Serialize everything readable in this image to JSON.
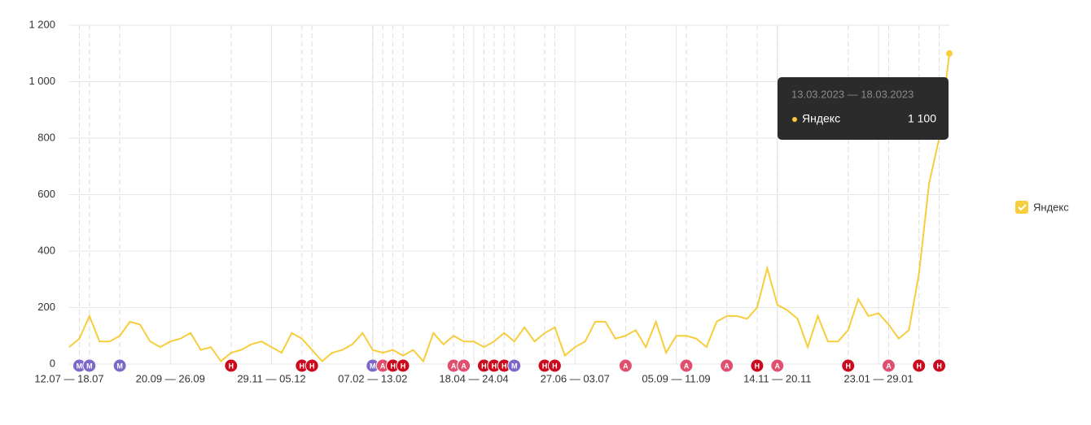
{
  "chart_data": {
    "type": "line",
    "categories": [
      "12.07 — 18.07",
      null,
      null,
      null,
      null,
      null,
      null,
      null,
      null,
      null,
      "20.09 — 26.09",
      null,
      null,
      null,
      null,
      null,
      null,
      null,
      null,
      null,
      "29.11 — 05.12",
      null,
      null,
      null,
      null,
      null,
      null,
      null,
      null,
      null,
      "07.02 — 13.02",
      null,
      null,
      null,
      null,
      null,
      null,
      null,
      null,
      null,
      "18.04 — 24.04",
      null,
      null,
      null,
      null,
      null,
      null,
      null,
      null,
      null,
      "27.06 — 03.07",
      null,
      null,
      null,
      null,
      null,
      null,
      null,
      null,
      null,
      "05.09 — 11.09",
      null,
      null,
      null,
      null,
      null,
      null,
      null,
      null,
      null,
      "14.11 — 20.11",
      null,
      null,
      null,
      null,
      null,
      null,
      null,
      null,
      null,
      "23.01 — 29.01",
      null,
      null,
      null,
      null,
      null,
      null,
      null
    ],
    "series": [
      {
        "name": "Яндекс",
        "color": "#f7cd3c",
        "values": [
          60,
          90,
          170,
          80,
          80,
          100,
          150,
          140,
          80,
          60,
          80,
          90,
          110,
          50,
          60,
          10,
          40,
          50,
          70,
          80,
          60,
          40,
          110,
          90,
          50,
          10,
          40,
          50,
          70,
          110,
          50,
          40,
          50,
          30,
          50,
          10,
          110,
          70,
          100,
          80,
          80,
          60,
          80,
          110,
          80,
          130,
          80,
          110,
          130,
          30,
          60,
          80,
          150,
          150,
          90,
          100,
          120,
          60,
          150,
          40,
          100,
          100,
          90,
          60,
          150,
          170,
          170,
          160,
          200,
          340,
          210,
          190,
          160,
          60,
          170,
          80,
          80,
          120,
          230,
          170,
          180,
          140,
          90,
          120,
          320,
          640,
          800,
          1100
        ]
      }
    ],
    "ylim": [
      0,
      1200
    ],
    "yticks": [
      0,
      200,
      400,
      600,
      800,
      {
        "value": 1000,
        "label": "1 000"
      },
      {
        "value": 1200,
        "label": "1 200"
      }
    ],
    "grid": true,
    "legend": "right",
    "tooltip": {
      "title": "13.03.2023 — 18.03.2023",
      "value_label": "1 100"
    },
    "annotations": [
      {
        "x": 1,
        "label": "М",
        "color": "#7b68c8"
      },
      {
        "x": 2,
        "label": "М",
        "color": "#7b68c8"
      },
      {
        "x": 5,
        "label": "М",
        "color": "#7b68c8"
      },
      {
        "x": 16,
        "label": "Н",
        "color": "#cc0a1e"
      },
      {
        "x": 23,
        "label": "Н",
        "color": "#cc0a1e"
      },
      {
        "x": 24,
        "label": "Н",
        "color": "#cc0a1e"
      },
      {
        "x": 30,
        "label": "М",
        "color": "#7b68c8"
      },
      {
        "x": 31,
        "label": "А",
        "color": "#e0506e"
      },
      {
        "x": 32,
        "label": "Н",
        "color": "#cc0a1e"
      },
      {
        "x": 33,
        "label": "Н",
        "color": "#cc0a1e"
      },
      {
        "x": 38,
        "label": "А",
        "color": "#e0506e"
      },
      {
        "x": 39,
        "label": "А",
        "color": "#e0506e"
      },
      {
        "x": 41,
        "label": "Н",
        "color": "#cc0a1e"
      },
      {
        "x": 42,
        "label": "Н",
        "color": "#cc0a1e"
      },
      {
        "x": 43,
        "label": "Н",
        "color": "#cc0a1e"
      },
      {
        "x": 44,
        "label": "М",
        "color": "#7b68c8"
      },
      {
        "x": 47,
        "label": "Н",
        "color": "#cc0a1e"
      },
      {
        "x": 48,
        "label": "Н",
        "color": "#cc0a1e"
      },
      {
        "x": 55,
        "label": "А",
        "color": "#e0506e"
      },
      {
        "x": 61,
        "label": "А",
        "color": "#e0506e"
      },
      {
        "x": 65,
        "label": "А",
        "color": "#e0506e"
      },
      {
        "x": 68,
        "label": "Н",
        "color": "#cc0a1e"
      },
      {
        "x": 70,
        "label": "А",
        "color": "#e0506e"
      },
      {
        "x": 77,
        "label": "Н",
        "color": "#cc0a1e"
      },
      {
        "x": 81,
        "label": "А",
        "color": "#e0506e"
      },
      {
        "x": 84,
        "label": "Н",
        "color": "#cc0a1e"
      },
      {
        "x": 86,
        "label": "Н",
        "color": "#cc0a1e"
      }
    ]
  }
}
